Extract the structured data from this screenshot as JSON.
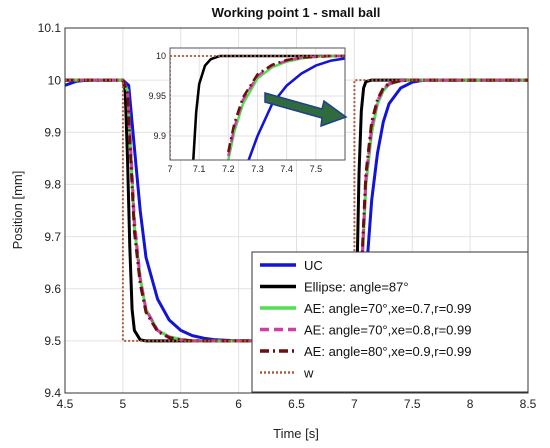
{
  "chart_data": [
    {
      "type": "line",
      "title": "Working point 1 - small ball",
      "xlabel": "Time [s]",
      "ylabel": "Position [mm]",
      "xlim": [
        4.5,
        8.5
      ],
      "ylim": [
        9.4,
        10.1
      ],
      "xticks": [
        "4.5",
        "5",
        "5.5",
        "6",
        "6.5",
        "7",
        "7.5",
        "8",
        "8.5"
      ],
      "yticks": [
        "9.4",
        "9.5",
        "9.6",
        "9.7",
        "9.8",
        "9.9",
        "10",
        "10.1"
      ],
      "grid": true,
      "legend_position": "bottom-right",
      "series": [
        {
          "name": "UC",
          "color": "#1414d4",
          "style": "solid",
          "x": [
            4.5,
            4.6,
            4.7,
            4.8,
            4.9,
            5.0,
            5.05,
            5.1,
            5.15,
            5.2,
            5.3,
            5.4,
            5.5,
            5.6,
            5.7,
            5.8,
            6.0,
            6.5,
            6.9,
            7.0,
            7.05,
            7.1,
            7.15,
            7.2,
            7.25,
            7.3,
            7.4,
            7.5,
            7.6,
            7.8,
            8.5
          ],
          "y": [
            9.99,
            9.998,
            10.0,
            10.0,
            10.0,
            10.0,
            9.99,
            9.87,
            9.75,
            9.66,
            9.58,
            9.54,
            9.52,
            9.51,
            9.505,
            9.502,
            9.5,
            9.5,
            9.5,
            9.5,
            9.51,
            9.62,
            9.77,
            9.86,
            9.92,
            9.955,
            9.985,
            9.996,
            10.0,
            10.0,
            10.0
          ]
        },
        {
          "name": "Ellipse: angle=87°",
          "color": "#000000",
          "style": "solid",
          "x": [
            4.5,
            5.0,
            5.02,
            5.04,
            5.06,
            5.08,
            5.1,
            5.15,
            5.2,
            6.9,
            7.0,
            7.02,
            7.04,
            7.06,
            7.08,
            7.1,
            7.15,
            7.2,
            8.5
          ],
          "y": [
            10.0,
            10.0,
            9.98,
            9.85,
            9.68,
            9.56,
            9.52,
            9.502,
            9.5,
            9.5,
            9.5,
            9.6,
            9.82,
            9.94,
            9.985,
            9.997,
            10.0,
            10.0,
            10.0
          ]
        },
        {
          "name": "AE: angle=70°,xe=0.7,r=0.99",
          "color": "#4fe04f",
          "style": "solid",
          "x": [
            4.5,
            5.0,
            5.04,
            5.07,
            5.1,
            5.15,
            5.2,
            5.3,
            5.4,
            5.5,
            5.6,
            5.8,
            6.9,
            7.0,
            7.04,
            7.07,
            7.1,
            7.15,
            7.2,
            7.25,
            7.3,
            7.4,
            7.5,
            8.5
          ],
          "y": [
            10.0,
            10.0,
            9.98,
            9.85,
            9.72,
            9.62,
            9.56,
            9.52,
            9.508,
            9.503,
            9.5,
            9.5,
            9.5,
            9.5,
            9.52,
            9.66,
            9.8,
            9.9,
            9.955,
            9.98,
            9.992,
            9.999,
            10.0,
            10.0
          ]
        },
        {
          "name": "AE: angle=70°,xe=0.8,r=0.99",
          "color": "#cc3fa8",
          "style": "dashed",
          "x": [
            4.5,
            5.0,
            5.04,
            5.07,
            5.1,
            5.15,
            5.2,
            5.3,
            5.4,
            5.5,
            5.6,
            5.8,
            6.9,
            7.0,
            7.04,
            7.07,
            7.1,
            7.15,
            7.2,
            7.25,
            7.3,
            7.4,
            7.5,
            8.5
          ],
          "y": [
            10.0,
            10.0,
            9.98,
            9.86,
            9.73,
            9.62,
            9.56,
            9.52,
            9.507,
            9.502,
            9.5,
            9.5,
            9.5,
            9.5,
            9.52,
            9.67,
            9.81,
            9.91,
            9.96,
            9.983,
            9.993,
            9.999,
            10.0,
            10.0
          ]
        },
        {
          "name": "AE: angle=80°,xe=0.9,r=0.99",
          "color": "#6b0f0f",
          "style": "dashdot",
          "x": [
            4.5,
            5.0,
            5.04,
            5.07,
            5.1,
            5.15,
            5.2,
            5.3,
            5.4,
            5.5,
            5.6,
            5.8,
            6.9,
            7.0,
            7.04,
            7.07,
            7.1,
            7.15,
            7.2,
            7.25,
            7.3,
            7.4,
            7.5,
            8.5
          ],
          "y": [
            10.0,
            10.0,
            9.975,
            9.84,
            9.71,
            9.61,
            9.555,
            9.518,
            9.506,
            9.502,
            9.5,
            9.5,
            9.5,
            9.5,
            9.53,
            9.68,
            9.82,
            9.92,
            9.963,
            9.985,
            9.994,
            9.999,
            10.0,
            10.0
          ]
        },
        {
          "name": "w",
          "color": "#b05a3c",
          "style": "dotted",
          "x": [
            4.5,
            5.0,
            5.0,
            7.0,
            7.0,
            8.5
          ],
          "y": [
            10.0,
            10.0,
            9.5,
            9.5,
            10.0,
            10.0
          ]
        }
      ]
    },
    {
      "type": "line",
      "title": "",
      "xlim": [
        7.0,
        7.6
      ],
      "ylim": [
        9.87,
        10.01
      ],
      "xticks": [
        "7",
        "7.1",
        "7.2",
        "7.3",
        "7.4",
        "7.5"
      ],
      "yticks": [
        "9.9",
        "9.95",
        "10"
      ],
      "grid": true,
      "series": [
        {
          "name": "UC",
          "color": "#1414d4",
          "style": "solid",
          "x": [
            7.27,
            7.3,
            7.35,
            7.4,
            7.45,
            7.5,
            7.55,
            7.6
          ],
          "y": [
            9.87,
            9.9,
            9.94,
            9.963,
            9.978,
            9.988,
            9.994,
            9.997
          ]
        },
        {
          "name": "Ellipse: angle=87°",
          "color": "#000000",
          "style": "solid",
          "x": [
            7.08,
            7.09,
            7.1,
            7.12,
            7.14,
            7.17,
            7.2,
            7.6
          ],
          "y": [
            9.87,
            9.93,
            9.965,
            9.988,
            9.996,
            10.0,
            10.0,
            10.0
          ]
        },
        {
          "name": "AE: angle=70°,xe=0.7,r=0.99",
          "color": "#4fe04f",
          "style": "solid",
          "x": [
            7.2,
            7.22,
            7.25,
            7.3,
            7.35,
            7.4,
            7.45,
            7.5,
            7.55,
            7.6
          ],
          "y": [
            9.87,
            9.905,
            9.94,
            9.972,
            9.986,
            9.993,
            9.997,
            9.999,
            10.0,
            10.0
          ]
        },
        {
          "name": "AE: angle=70°,xe=0.8,r=0.99",
          "color": "#cc3fa8",
          "style": "dashed",
          "x": [
            7.2,
            7.22,
            7.25,
            7.3,
            7.35,
            7.4,
            7.45,
            7.5,
            7.55,
            7.6
          ],
          "y": [
            9.875,
            9.91,
            9.945,
            9.975,
            9.988,
            9.994,
            9.998,
            9.999,
            10.0,
            10.0
          ]
        },
        {
          "name": "AE: angle=80°,xe=0.9,r=0.99",
          "color": "#6b0f0f",
          "style": "dashdot",
          "x": [
            7.2,
            7.22,
            7.25,
            7.3,
            7.35,
            7.4,
            7.45,
            7.5,
            7.55,
            7.6
          ],
          "y": [
            9.88,
            9.915,
            9.948,
            9.977,
            9.989,
            9.995,
            9.998,
            9.999,
            10.0,
            10.0
          ]
        },
        {
          "name": "w",
          "color": "#b05a3c",
          "style": "dotted",
          "x": [
            7.0,
            7.0,
            7.6
          ],
          "y": [
            9.87,
            10.0,
            10.0
          ]
        }
      ]
    }
  ],
  "colors": {
    "arrow": "#2f6b3c",
    "arrow_edge": "#1f3f8f",
    "grid": "#e2e2e2",
    "axis": "#333333"
  }
}
